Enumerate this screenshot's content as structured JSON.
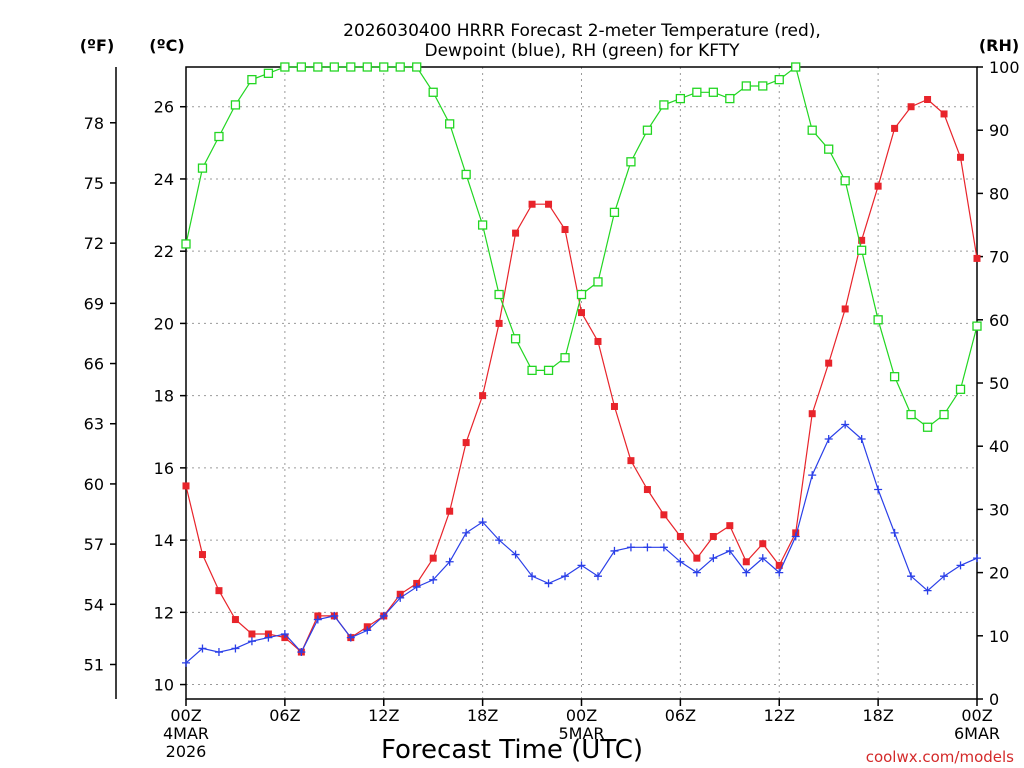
{
  "chart_data": {
    "type": "line",
    "title_line1": "2026030400 HRRR Forecast 2-meter Temperature (red),",
    "title_line2": "Dewpoint (blue), RH (green) for KFTY",
    "unit_f": "(ºF)",
    "unit_c": "(ºC)",
    "unit_rh": "(RH)",
    "xlabel": "Forecast Time (UTC)",
    "credit": "coolwx.com/models",
    "x_ticks": [
      {
        "hour": 0,
        "label": "00Z",
        "sub1": "4MAR",
        "sub2": "2026"
      },
      {
        "hour": 6,
        "label": "06Z"
      },
      {
        "hour": 12,
        "label": "12Z"
      },
      {
        "hour": 18,
        "label": "18Z"
      },
      {
        "hour": 24,
        "label": "00Z",
        "sub1": "5MAR"
      },
      {
        "hour": 30,
        "label": "06Z"
      },
      {
        "hour": 36,
        "label": "12Z"
      },
      {
        "hour": 42,
        "label": "18Z"
      },
      {
        "hour": 48,
        "label": "00Z",
        "sub1": "6MAR"
      }
    ],
    "xlim": [
      0,
      48
    ],
    "ylim_c": [
      9.6,
      27.1
    ],
    "ylim_rh": [
      0,
      100
    ],
    "y_ticks_c": [
      10,
      12,
      14,
      16,
      18,
      20,
      22,
      24,
      26
    ],
    "y_ticks_f": [
      51,
      54,
      57,
      60,
      63,
      66,
      69,
      72,
      75,
      78
    ],
    "y_ticks_rh": [
      0,
      10,
      20,
      30,
      40,
      50,
      60,
      70,
      80,
      90,
      100
    ],
    "x_hours": [
      0,
      1,
      2,
      3,
      4,
      5,
      6,
      7,
      8,
      9,
      10,
      11,
      12,
      13,
      14,
      15,
      16,
      17,
      18,
      19,
      20,
      21,
      22,
      23,
      24,
      25,
      26,
      27,
      28,
      29,
      30,
      31,
      32,
      33,
      34,
      35,
      36,
      37,
      38,
      39,
      40,
      41,
      42,
      43,
      44,
      45,
      46,
      47,
      48
    ],
    "series": [
      {
        "name": "Temperature",
        "unit": "C",
        "color": "#e8242b",
        "marker": "filled-square",
        "values": [
          15.5,
          13.6,
          12.6,
          11.8,
          11.4,
          11.4,
          11.3,
          10.9,
          11.9,
          11.9,
          11.3,
          11.6,
          11.9,
          12.5,
          12.8,
          13.5,
          14.8,
          16.7,
          18.0,
          20.0,
          22.5,
          23.3,
          23.3,
          22.6,
          20.3,
          19.5,
          17.7,
          16.2,
          15.4,
          14.7,
          14.1,
          13.5,
          14.1,
          14.4,
          13.4,
          13.9,
          13.3,
          14.2,
          17.5,
          18.9,
          20.4,
          22.3,
          23.8,
          25.4,
          26.0,
          26.2,
          25.8,
          24.6,
          21.8
        ]
      },
      {
        "name": "Dewpoint",
        "unit": "C",
        "color": "#2a3fe8",
        "marker": "plus",
        "values": [
          10.6,
          11.0,
          10.9,
          11.0,
          11.2,
          11.3,
          11.4,
          10.9,
          11.8,
          11.9,
          11.3,
          11.5,
          11.9,
          12.4,
          12.7,
          12.9,
          13.4,
          14.2,
          14.5,
          14.0,
          13.6,
          13.0,
          12.8,
          13.0,
          13.3,
          13.0,
          13.7,
          13.8,
          13.8,
          13.8,
          13.4,
          13.1,
          13.5,
          13.7,
          13.1,
          13.5,
          13.1,
          14.1,
          15.8,
          16.8,
          17.2,
          16.8,
          15.4,
          14.2,
          13.0,
          12.6,
          13.0,
          13.3,
          13.5
        ]
      },
      {
        "name": "RH",
        "unit": "%",
        "color": "#22d622",
        "marker": "open-square",
        "values": [
          72,
          84,
          89,
          94,
          98,
          99,
          100,
          100,
          100,
          100,
          100,
          100,
          100,
          100,
          100,
          96,
          91,
          83,
          75,
          64,
          57,
          52,
          52,
          54,
          64,
          66,
          77,
          85,
          90,
          94,
          95,
          96,
          96,
          95,
          97,
          97,
          98,
          100,
          90,
          87,
          82,
          71,
          60,
          51,
          45,
          43,
          45,
          49,
          59
        ]
      }
    ]
  }
}
